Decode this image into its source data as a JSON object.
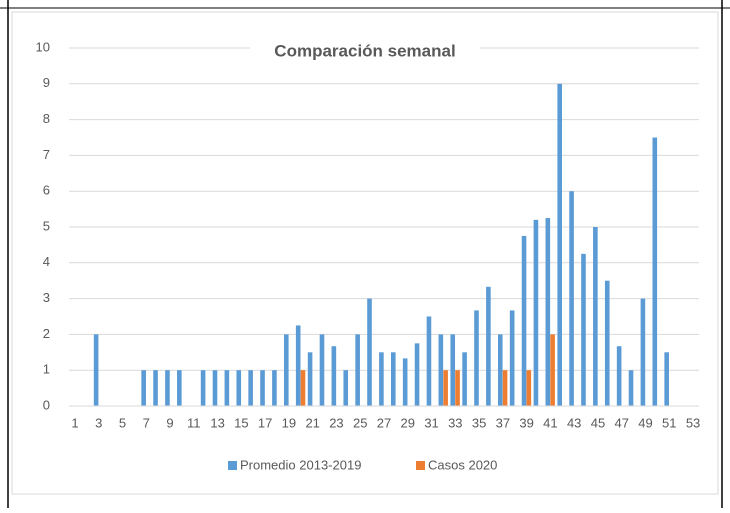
{
  "chart_data": {
    "type": "bar",
    "title": "Comparación semanal",
    "categories": [
      1,
      null,
      3,
      null,
      5,
      null,
      7,
      null,
      9,
      null,
      11,
      null,
      13,
      null,
      15,
      null,
      17,
      null,
      19,
      null,
      21,
      null,
      23,
      null,
      25,
      null,
      27,
      null,
      29,
      null,
      31,
      null,
      33,
      null,
      35,
      null,
      37,
      null,
      39,
      null,
      41,
      null,
      43,
      null,
      45,
      null,
      47,
      null,
      49,
      null,
      51,
      null,
      53
    ],
    "series": [
      {
        "name": "Promedio 2013-2019",
        "color": "#5b9bd5",
        "values": [
          0,
          0,
          2,
          0,
          0,
          0,
          1,
          1,
          1,
          1,
          0,
          1,
          1,
          1,
          1,
          1,
          1,
          1,
          2,
          2.25,
          1.5,
          2,
          1.67,
          1,
          2,
          3,
          1.5,
          1.5,
          1.33,
          1.75,
          2.5,
          2,
          2,
          1.5,
          2.67,
          3.33,
          2,
          2.67,
          4.75,
          5.2,
          5.25,
          9,
          6,
          4.25,
          5,
          3.5,
          1.67,
          1,
          3,
          7.5,
          1.5,
          0,
          0
        ]
      },
      {
        "name": "Casos 2020",
        "color": "#ed7d31",
        "values": [
          0,
          0,
          0,
          0,
          0,
          0,
          0,
          0,
          0,
          0,
          0,
          0,
          0,
          0,
          0,
          0,
          0,
          0,
          0,
          1,
          0,
          0,
          0,
          0,
          0,
          0,
          0,
          0,
          0,
          0,
          0,
          1,
          1,
          0,
          0,
          0,
          1,
          0,
          1,
          0,
          2,
          0,
          0,
          0,
          0,
          0,
          0,
          0,
          0,
          0,
          0,
          0,
          0
        ]
      }
    ],
    "ylim": [
      0,
      10
    ],
    "yticks": [
      0,
      1,
      2,
      3,
      4,
      5,
      6,
      7,
      8,
      9,
      10
    ],
    "grid": true
  }
}
